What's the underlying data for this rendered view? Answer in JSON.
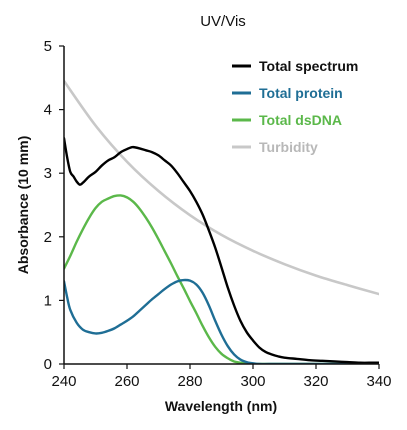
{
  "chart_data": {
    "type": "line",
    "title": "UV/Vis",
    "xlabel": "Wavelength (nm)",
    "ylabel": "Absorbance (10 mm)",
    "xlim": [
      240,
      340
    ],
    "ylim": [
      0,
      5
    ],
    "xticks": [
      240,
      260,
      280,
      300,
      320,
      340
    ],
    "yticks": [
      0,
      1,
      2,
      3,
      4,
      5
    ],
    "grid": false,
    "legend_position": "top-right",
    "series": [
      {
        "name": "Total spectrum",
        "color": "#000000",
        "x": [
          240,
          241,
          242,
          243,
          244,
          245,
          246,
          247,
          248,
          250,
          252,
          254,
          256,
          258,
          260,
          261,
          262,
          264,
          266,
          268,
          270,
          272,
          274,
          276,
          278,
          280,
          282,
          284,
          286,
          288,
          290,
          292,
          294,
          296,
          298,
          300,
          302,
          304,
          306,
          308,
          310,
          314,
          318,
          322,
          326,
          330,
          334,
          338,
          340
        ],
        "y": [
          3.55,
          3.25,
          3.02,
          2.95,
          2.87,
          2.82,
          2.85,
          2.9,
          2.95,
          3.02,
          3.12,
          3.2,
          3.25,
          3.33,
          3.38,
          3.4,
          3.41,
          3.39,
          3.36,
          3.33,
          3.28,
          3.2,
          3.12,
          3.0,
          2.86,
          2.72,
          2.55,
          2.35,
          2.1,
          1.83,
          1.52,
          1.2,
          0.92,
          0.68,
          0.5,
          0.37,
          0.26,
          0.19,
          0.15,
          0.12,
          0.1,
          0.08,
          0.06,
          0.05,
          0.04,
          0.03,
          0.02,
          0.02,
          0.02
        ]
      },
      {
        "name": "Total protein",
        "color": "#1f6e95",
        "x": [
          240,
          241,
          242,
          244,
          246,
          248,
          250,
          252,
          254,
          256,
          258,
          260,
          262,
          264,
          266,
          268,
          270,
          272,
          274,
          276,
          278,
          280,
          282,
          284,
          286,
          288,
          290,
          292,
          294,
          296,
          298,
          300,
          302,
          305,
          310,
          320,
          330,
          340
        ],
        "y": [
          1.3,
          1.05,
          0.85,
          0.65,
          0.54,
          0.5,
          0.48,
          0.49,
          0.52,
          0.56,
          0.62,
          0.68,
          0.75,
          0.84,
          0.93,
          1.02,
          1.1,
          1.18,
          1.25,
          1.3,
          1.32,
          1.31,
          1.25,
          1.12,
          0.92,
          0.68,
          0.46,
          0.28,
          0.15,
          0.07,
          0.03,
          0.01,
          0.0,
          0.0,
          0.0,
          0.0,
          0.0,
          0.0
        ]
      },
      {
        "name": "Total dsDNA",
        "color": "#5bb84a",
        "x": [
          240,
          242,
          244,
          246,
          248,
          250,
          252,
          254,
          256,
          258,
          260,
          262,
          264,
          266,
          268,
          270,
          272,
          274,
          276,
          278,
          280,
          282,
          284,
          286,
          288,
          290,
          292,
          294,
          296,
          298,
          300,
          302,
          305,
          310,
          320,
          330,
          340
        ],
        "y": [
          1.5,
          1.7,
          1.92,
          2.12,
          2.3,
          2.45,
          2.55,
          2.6,
          2.64,
          2.65,
          2.62,
          2.55,
          2.44,
          2.3,
          2.14,
          1.96,
          1.77,
          1.58,
          1.38,
          1.19,
          0.99,
          0.8,
          0.6,
          0.42,
          0.27,
          0.16,
          0.09,
          0.04,
          0.02,
          0.01,
          0.0,
          0.0,
          0.0,
          0.0,
          0.0,
          0.0,
          0.0
        ]
      },
      {
        "name": "Turbidity",
        "color": "#c8c8c8",
        "x": [
          240,
          250,
          260,
          270,
          280,
          290,
          300,
          310,
          320,
          330,
          340
        ],
        "y": [
          4.45,
          3.75,
          3.18,
          2.72,
          2.34,
          2.03,
          1.78,
          1.57,
          1.39,
          1.24,
          1.1
        ]
      }
    ]
  }
}
